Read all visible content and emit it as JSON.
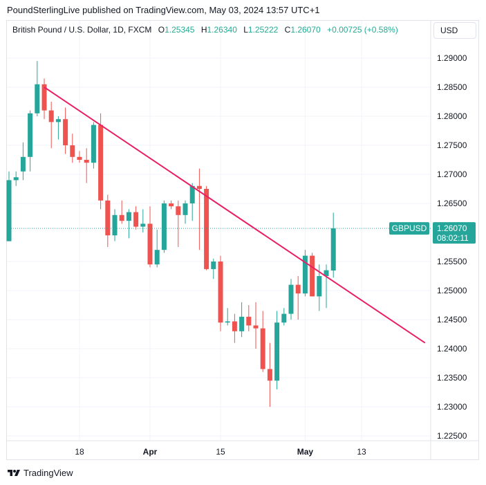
{
  "header": {
    "attribution": "PoundSterlingLive published on TradingView.com, May 03, 2024 13:57 UTC+1"
  },
  "legend": {
    "symbol": "British Pound / U.S. Dollar, 1D, FXCM",
    "open_label": "O",
    "open": "1.25345",
    "high_label": "H",
    "high": "1.26340",
    "low_label": "L",
    "low": "1.25222",
    "close_label": "C",
    "close": "1.26070",
    "change": "+0.00725 (+0.58%)"
  },
  "currency_button": "USD",
  "price_tag": {
    "symbol": "GBPUSD",
    "price": "1.26070",
    "countdown": "08:02:11"
  },
  "footer": {
    "brand": "TradingView"
  },
  "colors": {
    "up": "#26a69a",
    "down": "#ef5350",
    "trendline": "#e91e63",
    "grid": "#f0f3fa",
    "text": "#131722"
  },
  "chart_data": {
    "type": "candlestick",
    "symbol": "GBPUSD",
    "timeframe": "1D",
    "ylim": [
      1.2225,
      1.2935
    ],
    "y_ticks": [
      "1.29000",
      "1.28500",
      "1.28000",
      "1.27500",
      "1.27000",
      "1.26500",
      "1.25500",
      "1.25000",
      "1.24500",
      "1.24000",
      "1.23500",
      "1.23000",
      "1.22500"
    ],
    "x_ticks": [
      {
        "label": "18",
        "index": 10
      },
      {
        "label": "Apr",
        "index": 20
      },
      {
        "label": "15",
        "index": 30
      },
      {
        "label": "May",
        "index": 42
      },
      {
        "label": "13",
        "index": 50
      }
    ],
    "candles": [
      {
        "o": 1.2585,
        "h": 1.2705,
        "l": 1.2585,
        "c": 1.269
      },
      {
        "o": 1.269,
        "h": 1.2705,
        "l": 1.268,
        "c": 1.2695
      },
      {
        "o": 1.2705,
        "h": 1.2755,
        "l": 1.269,
        "c": 1.273
      },
      {
        "o": 1.273,
        "h": 1.281,
        "l": 1.2705,
        "c": 1.2805
      },
      {
        "o": 1.2805,
        "h": 1.2895,
        "l": 1.28,
        "c": 1.2855
      },
      {
        "o": 1.2855,
        "h": 1.2865,
        "l": 1.2795,
        "c": 1.281
      },
      {
        "o": 1.281,
        "h": 1.2825,
        "l": 1.2745,
        "c": 1.279
      },
      {
        "o": 1.279,
        "h": 1.28,
        "l": 1.276,
        "c": 1.2795
      },
      {
        "o": 1.2795,
        "h": 1.2815,
        "l": 1.2735,
        "c": 1.275
      },
      {
        "o": 1.275,
        "h": 1.277,
        "l": 1.272,
        "c": 1.273
      },
      {
        "o": 1.273,
        "h": 1.274,
        "l": 1.272,
        "c": 1.2725
      },
      {
        "o": 1.2725,
        "h": 1.2745,
        "l": 1.2685,
        "c": 1.272
      },
      {
        "o": 1.272,
        "h": 1.279,
        "l": 1.271,
        "c": 1.2785
      },
      {
        "o": 1.2785,
        "h": 1.2805,
        "l": 1.264,
        "c": 1.2655
      },
      {
        "o": 1.2655,
        "h": 1.2665,
        "l": 1.2575,
        "c": 1.2595
      },
      {
        "o": 1.2595,
        "h": 1.264,
        "l": 1.2585,
        "c": 1.263
      },
      {
        "o": 1.263,
        "h": 1.2655,
        "l": 1.2615,
        "c": 1.262
      },
      {
        "o": 1.262,
        "h": 1.264,
        "l": 1.259,
        "c": 1.2635
      },
      {
        "o": 1.2635,
        "h": 1.2645,
        "l": 1.2605,
        "c": 1.261
      },
      {
        "o": 1.261,
        "h": 1.264,
        "l": 1.26,
        "c": 1.2615
      },
      {
        "o": 1.2615,
        "h": 1.2645,
        "l": 1.254,
        "c": 1.2545
      },
      {
        "o": 1.2545,
        "h": 1.2605,
        "l": 1.254,
        "c": 1.257
      },
      {
        "o": 1.257,
        "h": 1.2655,
        "l": 1.2565,
        "c": 1.265
      },
      {
        "o": 1.265,
        "h": 1.2655,
        "l": 1.264,
        "c": 1.2645
      },
      {
        "o": 1.2645,
        "h": 1.2655,
        "l": 1.2575,
        "c": 1.263
      },
      {
        "o": 1.263,
        "h": 1.2655,
        "l": 1.2615,
        "c": 1.265
      },
      {
        "o": 1.265,
        "h": 1.2685,
        "l": 1.262,
        "c": 1.268
      },
      {
        "o": 1.268,
        "h": 1.271,
        "l": 1.257,
        "c": 1.2675
      },
      {
        "o": 1.2675,
        "h": 1.268,
        "l": 1.2535,
        "c": 1.2537
      },
      {
        "o": 1.2537,
        "h": 1.2555,
        "l": 1.252,
        "c": 1.255
      },
      {
        "o": 1.255,
        "h": 1.256,
        "l": 1.243,
        "c": 1.2445
      },
      {
        "o": 1.2445,
        "h": 1.247,
        "l": 1.244,
        "c": 1.2447
      },
      {
        "o": 1.2447,
        "h": 1.246,
        "l": 1.241,
        "c": 1.243
      },
      {
        "o": 1.243,
        "h": 1.248,
        "l": 1.242,
        "c": 1.2455
      },
      {
        "o": 1.2455,
        "h": 1.2475,
        "l": 1.243,
        "c": 1.244
      },
      {
        "o": 1.244,
        "h": 1.248,
        "l": 1.24,
        "c": 1.2435
      },
      {
        "o": 1.2435,
        "h": 1.2465,
        "l": 1.236,
        "c": 1.2365
      },
      {
        "o": 1.2365,
        "h": 1.241,
        "l": 1.23,
        "c": 1.2345
      },
      {
        "o": 1.2345,
        "h": 1.2465,
        "l": 1.233,
        "c": 1.2445
      },
      {
        "o": 1.2445,
        "h": 1.247,
        "l": 1.244,
        "c": 1.246
      },
      {
        "o": 1.246,
        "h": 1.252,
        "l": 1.245,
        "c": 1.251
      },
      {
        "o": 1.251,
        "h": 1.2525,
        "l": 1.245,
        "c": 1.2495
      },
      {
        "o": 1.2495,
        "h": 1.257,
        "l": 1.249,
        "c": 1.256
      },
      {
        "o": 1.256,
        "h": 1.2565,
        "l": 1.249,
        "c": 1.249
      },
      {
        "o": 1.249,
        "h": 1.2545,
        "l": 1.2465,
        "c": 1.2525
      },
      {
        "o": 1.2525,
        "h": 1.2545,
        "l": 1.247,
        "c": 1.2535
      },
      {
        "o": 1.25345,
        "h": 1.2634,
        "l": 1.25222,
        "c": 1.2607
      }
    ],
    "trendline": {
      "start_index": 5,
      "start_price": 1.285,
      "end_index": 59,
      "end_price": 1.241
    },
    "last_price": 1.2607
  }
}
